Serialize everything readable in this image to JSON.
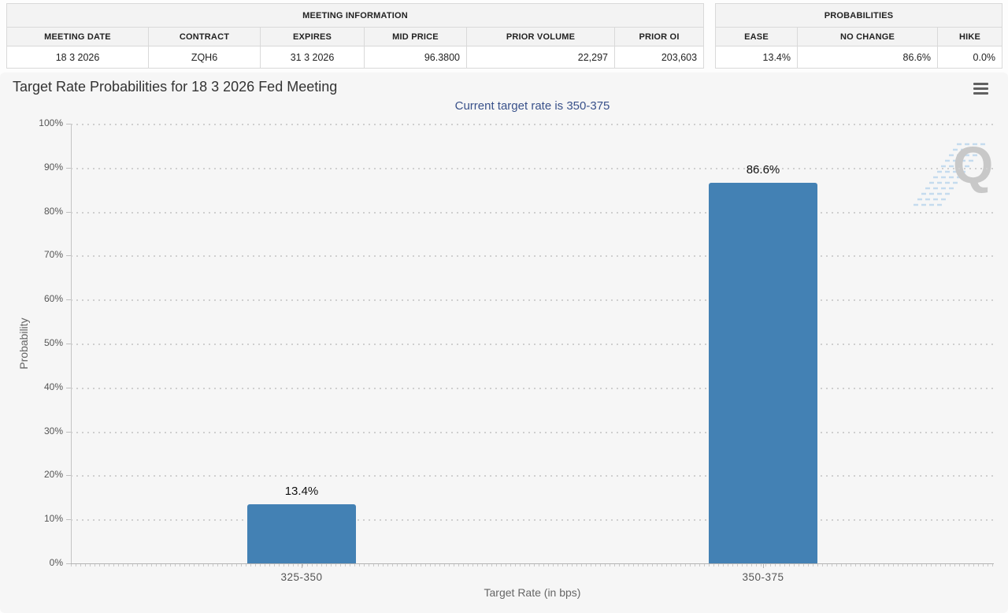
{
  "meeting_table": {
    "title": "MEETING INFORMATION",
    "headers": [
      "MEETING DATE",
      "CONTRACT",
      "EXPIRES",
      "MID PRICE",
      "PRIOR VOLUME",
      "PRIOR OI"
    ],
    "values": [
      "18 3 2026",
      "ZQH6",
      "31 3 2026",
      "96.3800",
      "22,297",
      "203,603"
    ]
  },
  "probabilities_table": {
    "title": "PROBABILITIES",
    "headers": [
      "EASE",
      "NO CHANGE",
      "HIKE"
    ],
    "values": [
      "13.4%",
      "86.6%",
      "0.0%"
    ]
  },
  "chart": {
    "title": "Target Rate Probabilities for 18 3 2026 Fed Meeting",
    "subtitle": "Current target rate is 350-375",
    "menu_icon": "hamburger-icon",
    "watermark_letter": "Q"
  },
  "chart_data": {
    "type": "bar",
    "title": "Target Rate Probabilities for 18 3 2026 Fed Meeting",
    "subtitle": "Current target rate is 350-375",
    "categories": [
      "325-350",
      "350-375"
    ],
    "values": [
      13.4,
      86.6
    ],
    "value_labels": [
      "13.4%",
      "86.6%"
    ],
    "xlabel": "Target Rate (in bps)",
    "ylabel": "Probability",
    "ylim": [
      0,
      100
    ],
    "yticks": [
      "0%",
      "10%",
      "20%",
      "30%",
      "40%",
      "50%",
      "60%",
      "70%",
      "80%",
      "90%",
      "100%"
    ],
    "grid": "dotted-horizontal",
    "legend": "none",
    "bar_color": "#4381b4"
  },
  "colors": {
    "bar": "#4381b4",
    "subtitle_text": "#39518a",
    "panel_background": "#f6f6f6",
    "table_border": "#d9d9d9",
    "header_background": "#f3f3f3",
    "watermark_gray": "#c8c8c8",
    "watermark_blue": "#b5d3ec"
  }
}
